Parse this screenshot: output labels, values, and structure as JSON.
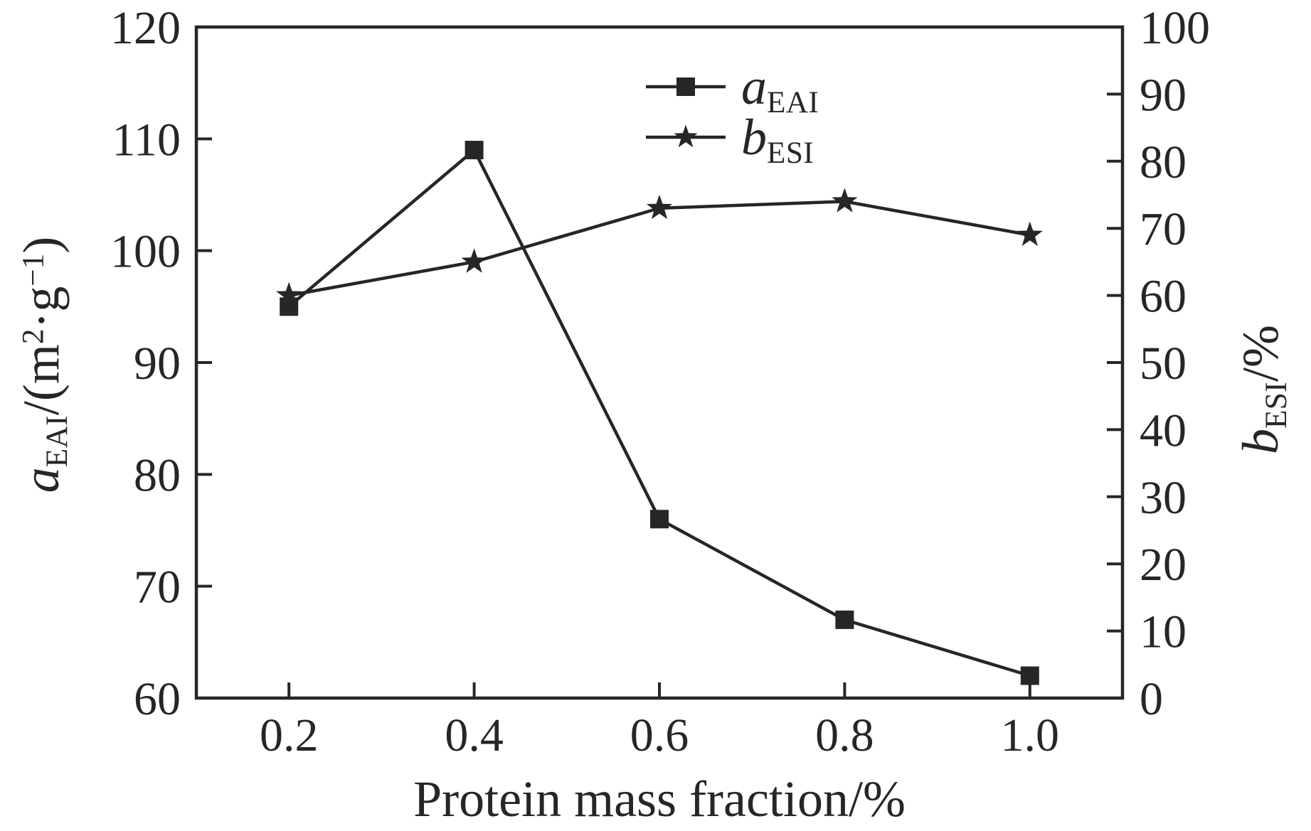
{
  "figure": {
    "background": "#ffffff",
    "ink_color": "#262626"
  },
  "chart_data": {
    "type": "line",
    "title": "",
    "xlabel": "Protein mass fraction/%",
    "grid": false,
    "legend_position": "inside-top-center",
    "x": [
      0.2,
      0.4,
      0.6,
      0.8,
      1.0
    ],
    "x_tick_labels": [
      "0.2",
      "0.4",
      "0.6",
      "0.8",
      "1.0"
    ],
    "x_range": [
      0.1,
      1.1
    ],
    "left_axis": {
      "label_symbol": "a",
      "label_subscript": "EAI",
      "label_unit_pre": "/(m",
      "label_unit_sup1": "2",
      "label_unit_mid": "·g",
      "label_unit_sup2": "−1",
      "label_unit_post": ")",
      "range": [
        60,
        120
      ],
      "ticks": [
        60,
        70,
        80,
        90,
        100,
        110,
        120
      ],
      "tick_labels": [
        "60",
        "70",
        "80",
        "90",
        "100",
        "110",
        "120"
      ]
    },
    "right_axis": {
      "label_symbol": "b",
      "label_subscript": "ESI",
      "label_unit": "/%",
      "range": [
        0,
        100
      ],
      "ticks": [
        0,
        10,
        20,
        30,
        40,
        50,
        60,
        70,
        80,
        90,
        100
      ],
      "tick_labels": [
        "0",
        "10",
        "20",
        "30",
        "40",
        "50",
        "60",
        "70",
        "80",
        "90",
        "100"
      ]
    },
    "series": [
      {
        "name": "aEAI",
        "legend_symbol": "a",
        "legend_subscript": "EAI",
        "marker": "square",
        "marker_icon": "square-marker-icon",
        "axis": "left",
        "values": [
          95,
          109,
          76,
          67,
          62
        ]
      },
      {
        "name": "bESI",
        "legend_symbol": "b",
        "legend_subscript": "ESI",
        "marker": "star",
        "marker_icon": "star-marker-icon",
        "axis": "right",
        "values": [
          60,
          65,
          73,
          74,
          69
        ]
      }
    ]
  }
}
